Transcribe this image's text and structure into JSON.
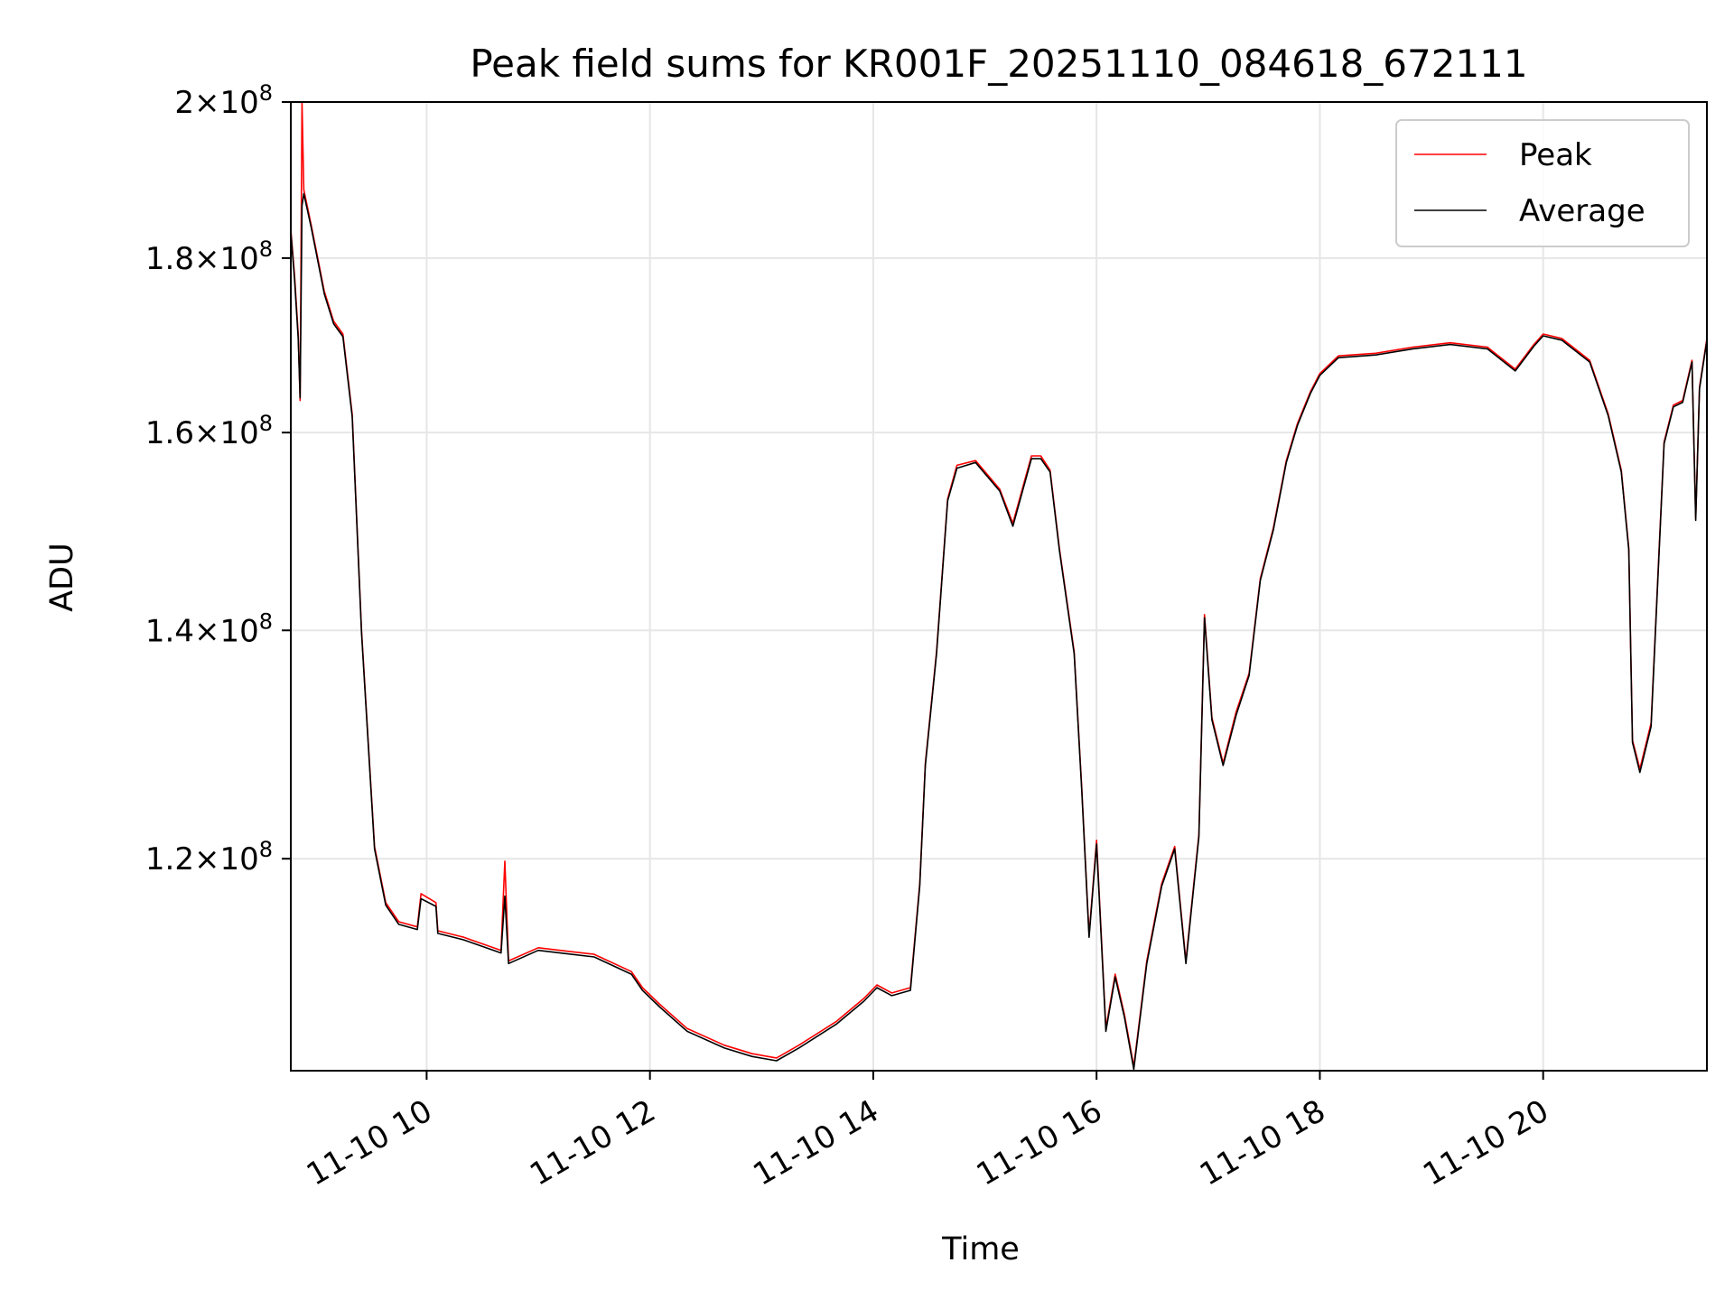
{
  "chart_data": {
    "type": "line",
    "title": "Peak field sums for KR001F_20251110_084618_672111",
    "xlabel": "Time",
    "ylabel": "ADU",
    "yscale": "log",
    "xlim": [
      "2025-11-10 08:47",
      "2025-11-10 21:28"
    ],
    "ylim": [
      104000000,
      200000000
    ],
    "grid": true,
    "legend": {
      "placement": "top-right",
      "entries": [
        "Peak",
        "Average"
      ]
    },
    "xticks": [
      {
        "value": "2025-11-10 10:00",
        "label": "11-10 10"
      },
      {
        "value": "2025-11-10 12:00",
        "label": "11-10 12"
      },
      {
        "value": "2025-11-10 14:00",
        "label": "11-10 14"
      },
      {
        "value": "2025-11-10 16:00",
        "label": "11-10 16"
      },
      {
        "value": "2025-11-10 18:00",
        "label": "11-10 18"
      },
      {
        "value": "2025-11-10 20:00",
        "label": "11-10 20"
      }
    ],
    "yticks": [
      {
        "value": 120000000,
        "mantissa": "1.2",
        "exp": "8"
      },
      {
        "value": 140000000,
        "mantissa": "1.4",
        "exp": "8"
      },
      {
        "value": 160000000,
        "mantissa": "1.6",
        "exp": "8"
      },
      {
        "value": 180000000,
        "mantissa": "1.8",
        "exp": "8"
      },
      {
        "value": 200000000,
        "mantissa": "2",
        "exp": "8"
      }
    ],
    "series": [
      {
        "name": "Peak",
        "color": "#ff0000",
        "points": [
          [
            "2025-11-10 08:47",
            183.5
          ],
          [
            "2025-11-10 08:49",
            178.0
          ],
          [
            "2025-11-10 08:51",
            171.0
          ],
          [
            "2025-11-10 08:52",
            163.5
          ],
          [
            "2025-11-10 08:53",
            200.0
          ],
          [
            "2025-11-10 08:54",
            188.5
          ],
          [
            "2025-11-10 08:58",
            184.0
          ],
          [
            "2025-11-10 09:05",
            176.0
          ],
          [
            "2025-11-10 09:10",
            172.5
          ],
          [
            "2025-11-10 09:15",
            171.0
          ],
          [
            "2025-11-10 09:20",
            162.0
          ],
          [
            "2025-11-10 09:25",
            140.0
          ],
          [
            "2025-11-10 09:32",
            121.0
          ],
          [
            "2025-11-10 09:38",
            116.5
          ],
          [
            "2025-11-10 09:45",
            115.0
          ],
          [
            "2025-11-10 09:55",
            114.6
          ],
          [
            "2025-11-10 09:57",
            117.2
          ],
          [
            "2025-11-10 10:05",
            116.5
          ],
          [
            "2025-11-10 10:06",
            114.3
          ],
          [
            "2025-11-10 10:20",
            113.8
          ],
          [
            "2025-11-10 10:40",
            112.8
          ],
          [
            "2025-11-10 10:42",
            119.8
          ],
          [
            "2025-11-10 10:44",
            112.0
          ],
          [
            "2025-11-10 11:00",
            113.0
          ],
          [
            "2025-11-10 11:30",
            112.5
          ],
          [
            "2025-11-10 11:50",
            111.2
          ],
          [
            "2025-11-10 11:56",
            110.0
          ],
          [
            "2025-11-10 12:05",
            108.8
          ],
          [
            "2025-11-10 12:20",
            107.0
          ],
          [
            "2025-11-10 12:40",
            105.8
          ],
          [
            "2025-11-10 12:55",
            105.2
          ],
          [
            "2025-11-10 13:08",
            104.9
          ],
          [
            "2025-11-10 13:20",
            105.8
          ],
          [
            "2025-11-10 13:40",
            107.5
          ],
          [
            "2025-11-10 13:55",
            109.2
          ],
          [
            "2025-11-10 14:02",
            110.2
          ],
          [
            "2025-11-10 14:10",
            109.6
          ],
          [
            "2025-11-10 14:20",
            110.0
          ],
          [
            "2025-11-10 14:25",
            118.0
          ],
          [
            "2025-11-10 14:28",
            128.0
          ],
          [
            "2025-11-10 14:34",
            138.0
          ],
          [
            "2025-11-10 14:40",
            153.0
          ],
          [
            "2025-11-10 14:45",
            156.5
          ],
          [
            "2025-11-10 14:55",
            157.0
          ],
          [
            "2025-11-10 15:08",
            154.0
          ],
          [
            "2025-11-10 15:15",
            150.5
          ],
          [
            "2025-11-10 15:25",
            157.5
          ],
          [
            "2025-11-10 15:30",
            157.5
          ],
          [
            "2025-11-10 15:35",
            156.0
          ],
          [
            "2025-11-10 15:40",
            148.0
          ],
          [
            "2025-11-10 15:48",
            138.0
          ],
          [
            "2025-11-10 15:52",
            126.0
          ],
          [
            "2025-11-10 15:56",
            114.0
          ],
          [
            "2025-11-10 16:00",
            121.5
          ],
          [
            "2025-11-10 16:05",
            107.0
          ],
          [
            "2025-11-10 16:10",
            111.0
          ],
          [
            "2025-11-10 16:15",
            108.0
          ],
          [
            "2025-11-10 16:20",
            104.3
          ],
          [
            "2025-11-10 16:27",
            112.0
          ],
          [
            "2025-11-10 16:35",
            118.0
          ],
          [
            "2025-11-10 16:42",
            121.0
          ],
          [
            "2025-11-10 16:48",
            112.0
          ],
          [
            "2025-11-10 16:55",
            122.0
          ],
          [
            "2025-11-10 16:58",
            141.5
          ],
          [
            "2025-11-10 17:02",
            132.0
          ],
          [
            "2025-11-10 17:08",
            128.0
          ],
          [
            "2025-11-10 17:15",
            132.5
          ],
          [
            "2025-11-10 17:22",
            136.0
          ],
          [
            "2025-11-10 17:28",
            145.0
          ],
          [
            "2025-11-10 17:35",
            150.0
          ],
          [
            "2025-11-10 17:42",
            157.0
          ],
          [
            "2025-11-10 17:48",
            161.0
          ],
          [
            "2025-11-10 17:55",
            164.5
          ],
          [
            "2025-11-10 18:00",
            166.5
          ],
          [
            "2025-11-10 18:10",
            168.5
          ],
          [
            "2025-11-10 18:30",
            168.8
          ],
          [
            "2025-11-10 18:50",
            169.5
          ],
          [
            "2025-11-10 19:10",
            170.0
          ],
          [
            "2025-11-10 19:30",
            169.5
          ],
          [
            "2025-11-10 19:45",
            167.0
          ],
          [
            "2025-11-10 19:55",
            169.8
          ],
          [
            "2025-11-10 20:00",
            171.0
          ],
          [
            "2025-11-10 20:10",
            170.5
          ],
          [
            "2025-11-10 20:25",
            168.0
          ],
          [
            "2025-11-10 20:35",
            162.0
          ],
          [
            "2025-11-10 20:42",
            156.0
          ],
          [
            "2025-11-10 20:46",
            148.0
          ],
          [
            "2025-11-10 20:48",
            130.0
          ],
          [
            "2025-11-10 20:52",
            127.5
          ],
          [
            "2025-11-10 20:58",
            131.5
          ],
          [
            "2025-11-10 21:05",
            159.0
          ],
          [
            "2025-11-10 21:10",
            163.0
          ],
          [
            "2025-11-10 21:15",
            163.5
          ],
          [
            "2025-11-10 21:20",
            168.0
          ],
          [
            "2025-11-10 21:22",
            151.0
          ],
          [
            "2025-11-10 21:24",
            165.0
          ],
          [
            "2025-11-10 21:28",
            170.5
          ]
        ]
      },
      {
        "name": "Average",
        "color": "#000000",
        "points": [
          [
            "2025-11-10 08:47",
            183.2
          ],
          [
            "2025-11-10 08:49",
            177.5
          ],
          [
            "2025-11-10 08:51",
            170.5
          ],
          [
            "2025-11-10 08:52",
            163.8
          ],
          [
            "2025-11-10 08:53",
            186.5
          ],
          [
            "2025-11-10 08:54",
            188.0
          ],
          [
            "2025-11-10 08:58",
            183.7
          ],
          [
            "2025-11-10 09:05",
            175.7
          ],
          [
            "2025-11-10 09:10",
            172.2
          ],
          [
            "2025-11-10 09:15",
            170.7
          ],
          [
            "2025-11-10 09:20",
            161.7
          ],
          [
            "2025-11-10 09:25",
            139.8
          ],
          [
            "2025-11-10 09:32",
            120.8
          ],
          [
            "2025-11-10 09:38",
            116.3
          ],
          [
            "2025-11-10 09:45",
            114.8
          ],
          [
            "2025-11-10 09:55",
            114.4
          ],
          [
            "2025-11-10 09:57",
            116.8
          ],
          [
            "2025-11-10 10:05",
            116.2
          ],
          [
            "2025-11-10 10:06",
            114.1
          ],
          [
            "2025-11-10 10:20",
            113.6
          ],
          [
            "2025-11-10 10:40",
            112.6
          ],
          [
            "2025-11-10 10:42",
            117.0
          ],
          [
            "2025-11-10 10:44",
            111.8
          ],
          [
            "2025-11-10 11:00",
            112.8
          ],
          [
            "2025-11-10 11:30",
            112.3
          ],
          [
            "2025-11-10 11:50",
            111.0
          ],
          [
            "2025-11-10 11:56",
            109.8
          ],
          [
            "2025-11-10 12:05",
            108.6
          ],
          [
            "2025-11-10 12:20",
            106.8
          ],
          [
            "2025-11-10 12:40",
            105.6
          ],
          [
            "2025-11-10 12:55",
            105.0
          ],
          [
            "2025-11-10 13:08",
            104.7
          ],
          [
            "2025-11-10 13:20",
            105.6
          ],
          [
            "2025-11-10 13:40",
            107.3
          ],
          [
            "2025-11-10 13:55",
            109.0
          ],
          [
            "2025-11-10 14:02",
            110.0
          ],
          [
            "2025-11-10 14:10",
            109.4
          ],
          [
            "2025-11-10 14:20",
            109.8
          ],
          [
            "2025-11-10 14:25",
            117.8
          ],
          [
            "2025-11-10 14:28",
            127.8
          ],
          [
            "2025-11-10 14:34",
            137.8
          ],
          [
            "2025-11-10 14:40",
            152.8
          ],
          [
            "2025-11-10 14:45",
            156.2
          ],
          [
            "2025-11-10 14:55",
            156.8
          ],
          [
            "2025-11-10 15:08",
            153.8
          ],
          [
            "2025-11-10 15:15",
            150.2
          ],
          [
            "2025-11-10 15:25",
            157.2
          ],
          [
            "2025-11-10 15:30",
            157.2
          ],
          [
            "2025-11-10 15:35",
            155.8
          ],
          [
            "2025-11-10 15:40",
            147.8
          ],
          [
            "2025-11-10 15:48",
            137.8
          ],
          [
            "2025-11-10 15:52",
            125.8
          ],
          [
            "2025-11-10 15:56",
            113.8
          ],
          [
            "2025-11-10 16:00",
            121.2
          ],
          [
            "2025-11-10 16:05",
            106.8
          ],
          [
            "2025-11-10 16:10",
            110.8
          ],
          [
            "2025-11-10 16:15",
            107.8
          ],
          [
            "2025-11-10 16:20",
            104.1
          ],
          [
            "2025-11-10 16:27",
            111.8
          ],
          [
            "2025-11-10 16:35",
            117.8
          ],
          [
            "2025-11-10 16:42",
            120.8
          ],
          [
            "2025-11-10 16:48",
            111.8
          ],
          [
            "2025-11-10 16:55",
            121.8
          ],
          [
            "2025-11-10 16:58",
            141.2
          ],
          [
            "2025-11-10 17:02",
            131.8
          ],
          [
            "2025-11-10 17:08",
            127.8
          ],
          [
            "2025-11-10 17:15",
            132.2
          ],
          [
            "2025-11-10 17:22",
            135.8
          ],
          [
            "2025-11-10 17:28",
            144.8
          ],
          [
            "2025-11-10 17:35",
            149.8
          ],
          [
            "2025-11-10 17:42",
            156.8
          ],
          [
            "2025-11-10 17:48",
            160.8
          ],
          [
            "2025-11-10 17:55",
            164.3
          ],
          [
            "2025-11-10 18:00",
            166.3
          ],
          [
            "2025-11-10 18:10",
            168.3
          ],
          [
            "2025-11-10 18:30",
            168.6
          ],
          [
            "2025-11-10 18:50",
            169.3
          ],
          [
            "2025-11-10 19:10",
            169.8
          ],
          [
            "2025-11-10 19:30",
            169.3
          ],
          [
            "2025-11-10 19:45",
            166.8
          ],
          [
            "2025-11-10 19:55",
            169.6
          ],
          [
            "2025-11-10 20:00",
            170.8
          ],
          [
            "2025-11-10 20:10",
            170.3
          ],
          [
            "2025-11-10 20:25",
            167.8
          ],
          [
            "2025-11-10 20:35",
            161.8
          ],
          [
            "2025-11-10 20:42",
            155.8
          ],
          [
            "2025-11-10 20:46",
            147.8
          ],
          [
            "2025-11-10 20:48",
            129.8
          ],
          [
            "2025-11-10 20:52",
            127.2
          ],
          [
            "2025-11-10 20:58",
            131.2
          ],
          [
            "2025-11-10 21:05",
            158.8
          ],
          [
            "2025-11-10 21:10",
            162.8
          ],
          [
            "2025-11-10 21:15",
            163.3
          ],
          [
            "2025-11-10 21:20",
            167.8
          ],
          [
            "2025-11-10 21:22",
            150.8
          ],
          [
            "2025-11-10 21:24",
            164.8
          ],
          [
            "2025-11-10 21:28",
            170.3
          ]
        ]
      }
    ],
    "value_unit_multiplier": 1000000
  }
}
